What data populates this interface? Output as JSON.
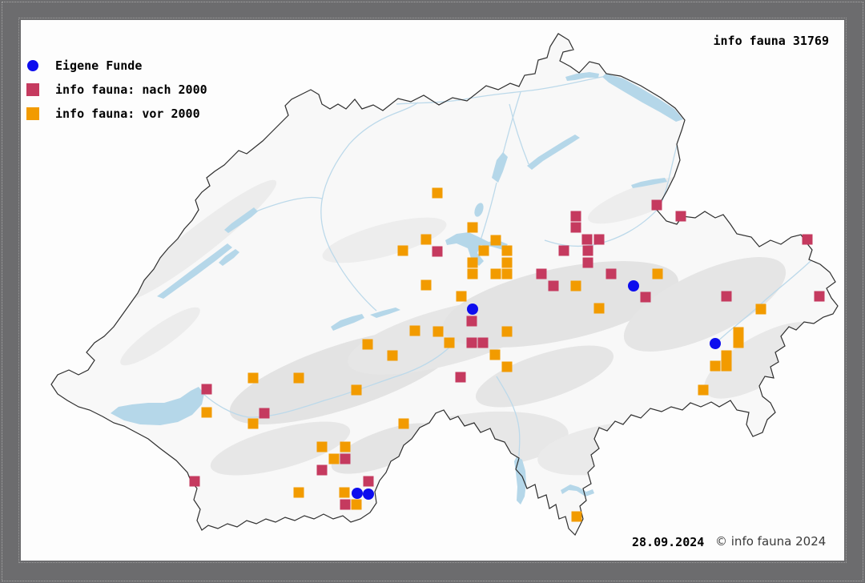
{
  "frame": {
    "title": "info fauna 31769",
    "date": "28.09.2024",
    "copyright": "© info fauna 2024"
  },
  "legend": {
    "items": [
      {
        "label": "Eigene Funde",
        "type": "circle",
        "color": "#0D0DEE"
      },
      {
        "label": "info fauna: nach 2000",
        "type": "square",
        "color": "#C53A5F"
      },
      {
        "label": "info fauna: vor 2000",
        "type": "square",
        "color": "#F29B00"
      }
    ]
  },
  "map": {
    "region": "Switzerland",
    "colors": {
      "frame_bg": "#6C6C6E",
      "panel_bg": "#FDFDFD",
      "lake": "#B5D7E9",
      "river": "#BCD9EA",
      "border": "#2E2E2E",
      "relief": "#E6E6E6"
    },
    "markers": {
      "eigene_funde": [
        [
          590,
          386
        ],
        [
          791,
          357
        ],
        [
          893,
          429
        ],
        [
          446,
          616
        ],
        [
          460,
          617
        ]
      ],
      "nach_2000": [
        [
          546,
          314
        ],
        [
          676,
          342
        ],
        [
          691,
          357
        ],
        [
          704,
          313
        ],
        [
          719,
          270
        ],
        [
          719,
          284
        ],
        [
          733,
          299
        ],
        [
          748,
          299
        ],
        [
          734,
          313
        ],
        [
          734,
          328
        ],
        [
          763,
          342
        ],
        [
          806,
          371
        ],
        [
          820,
          256
        ],
        [
          850,
          270
        ],
        [
          1008,
          299
        ],
        [
          907,
          370
        ],
        [
          1023,
          370
        ],
        [
          589,
          401
        ],
        [
          589,
          428
        ],
        [
          603,
          428
        ],
        [
          575,
          471
        ],
        [
          258,
          486
        ],
        [
          330,
          516
        ],
        [
          243,
          601
        ],
        [
          431,
          573
        ],
        [
          402,
          587
        ],
        [
          460,
          601
        ],
        [
          431,
          630
        ]
      ],
      "vor_2000": [
        [
          546,
          241
        ],
        [
          532,
          299
        ],
        [
          590,
          284
        ],
        [
          619,
          300
        ],
        [
          503,
          313
        ],
        [
          604,
          313
        ],
        [
          633,
          313
        ],
        [
          590,
          328
        ],
        [
          633,
          328
        ],
        [
          590,
          342
        ],
        [
          619,
          342
        ],
        [
          633,
          342
        ],
        [
          532,
          356
        ],
        [
          576,
          370
        ],
        [
          518,
          413
        ],
        [
          547,
          414
        ],
        [
          561,
          428
        ],
        [
          633,
          414
        ],
        [
          618,
          443
        ],
        [
          633,
          458
        ],
        [
          719,
          357
        ],
        [
          748,
          385
        ],
        [
          821,
          342
        ],
        [
          950,
          386
        ],
        [
          922,
          415
        ],
        [
          922,
          428
        ],
        [
          907,
          444
        ],
        [
          893,
          457
        ],
        [
          907,
          457
        ],
        [
          878,
          487
        ],
        [
          459,
          430
        ],
        [
          490,
          444
        ],
        [
          316,
          472
        ],
        [
          373,
          472
        ],
        [
          445,
          487
        ],
        [
          258,
          515
        ],
        [
          316,
          529
        ],
        [
          504,
          529
        ],
        [
          402,
          558
        ],
        [
          431,
          558
        ],
        [
          417,
          573
        ],
        [
          373,
          615
        ],
        [
          430,
          615
        ],
        [
          445,
          630
        ],
        [
          720,
          645
        ]
      ]
    }
  }
}
